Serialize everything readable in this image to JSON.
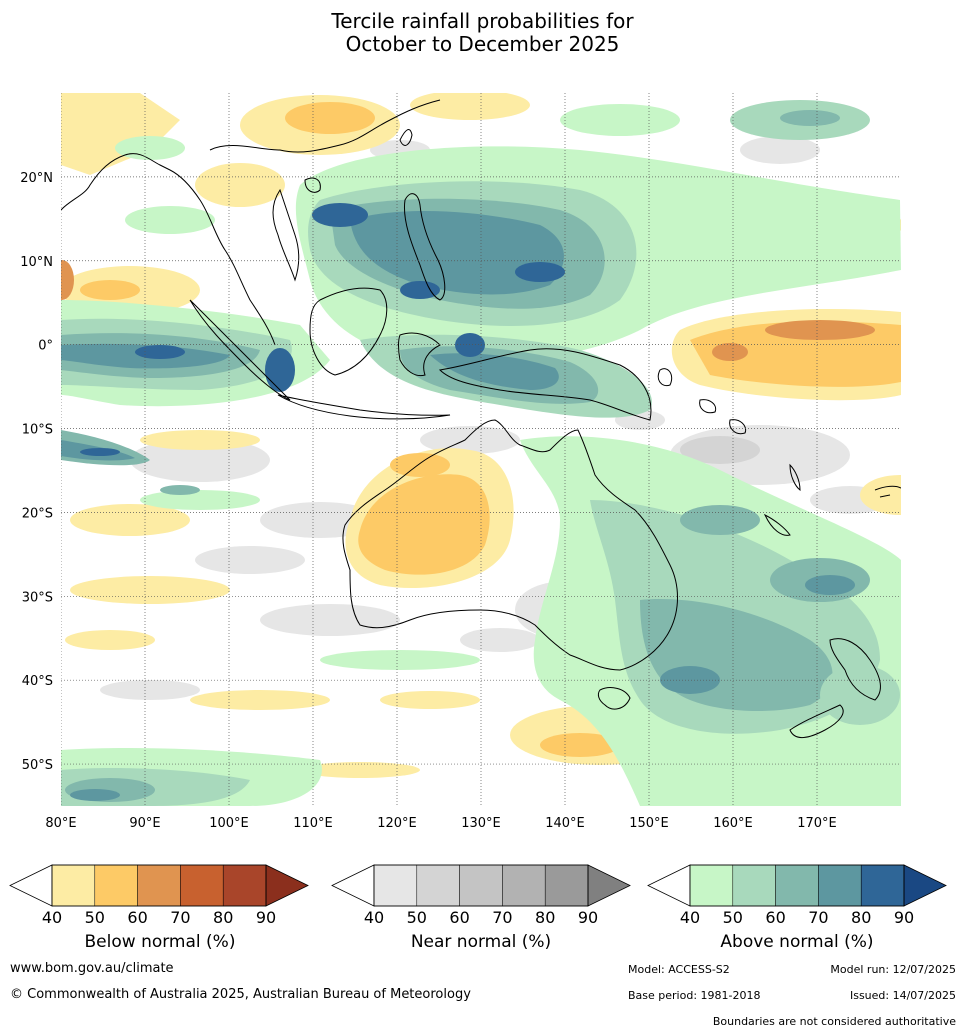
{
  "title": {
    "line1": "Tercile rainfall probabilities for",
    "line2": "October to December 2025"
  },
  "map": {
    "lon_labels": [
      "80°E",
      "90°E",
      "100°E",
      "110°E",
      "120°E",
      "130°E",
      "140°E",
      "150°E",
      "160°E",
      "170°E"
    ],
    "lat_labels": [
      "20°N",
      "10°N",
      "0°",
      "10°S",
      "20°S",
      "30°S",
      "40°S",
      "50°S"
    ],
    "lon_range": [
      80,
      180
    ],
    "lat_range": [
      -55,
      30
    ],
    "grid": "dotted",
    "colors": {
      "below_normal": [
        "#fdeca4",
        "#fdca66",
        "#e09450",
        "#c8612f",
        "#a9452a",
        "#8b2f1d"
      ],
      "near_normal": [
        "#e6e6e6",
        "#d4d4d4",
        "#c4c4c4",
        "#b2b2b2",
        "#9a9a9a",
        "#808080"
      ],
      "above_normal": [
        "#c7f6c7",
        "#a8d9bc",
        "#82b8ac",
        "#5d97a0",
        "#2f6697",
        "#1a4883"
      ]
    }
  },
  "legends": [
    {
      "id": "below",
      "title": "Below normal (%)",
      "ticks": [
        "40",
        "50",
        "60",
        "70",
        "80",
        "90"
      ],
      "colors": [
        "#fdeca4",
        "#fdca66",
        "#e09450",
        "#c8612f",
        "#a9452a",
        "#8b2f1d"
      ]
    },
    {
      "id": "near",
      "title": "Near normal (%)",
      "ticks": [
        "40",
        "50",
        "60",
        "70",
        "80",
        "90"
      ],
      "colors": [
        "#e6e6e6",
        "#d4d4d4",
        "#c4c4c4",
        "#b2b2b2",
        "#9a9a9a",
        "#808080"
      ]
    },
    {
      "id": "above",
      "title": "Above normal (%)",
      "ticks": [
        "40",
        "50",
        "60",
        "70",
        "80",
        "90"
      ],
      "colors": [
        "#c7f6c7",
        "#a8d9bc",
        "#82b8ac",
        "#5d97a0",
        "#2f6697",
        "#1a4883"
      ]
    }
  ],
  "footer": {
    "website": "www.bom.gov.au/climate",
    "copyright": "© Commonwealth of Australia 2025, Australian Bureau of Meteorology",
    "model": "Model: ACCESS-S2",
    "base_period": "Base period: 1981-2018",
    "model_run": "Model run: 12/07/2025",
    "issued": "Issued: 14/07/2025",
    "disclaimer": "Boundaries are not considered authoritative"
  }
}
